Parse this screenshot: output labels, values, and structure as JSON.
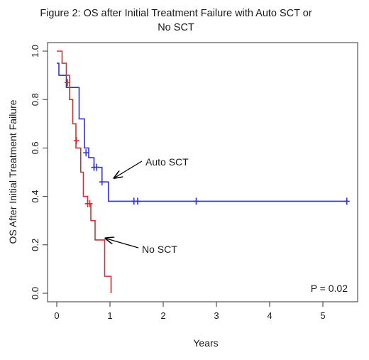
{
  "chart_data": {
    "type": "line",
    "step": true,
    "title_lines": [
      "Figure 2: OS after Initial Treatment Failure with Auto SCT or",
      "No SCT"
    ],
    "xlabel": "Years",
    "ylabel": "OS After Initial Treatment Failure",
    "xlim": [
      0,
      5.6
    ],
    "ylim": [
      0,
      1.0
    ],
    "x_ticks": [
      "0",
      "1",
      "2",
      "3",
      "4",
      "5"
    ],
    "y_ticks": [
      "0.0",
      "0.2",
      "0.4",
      "0.6",
      "0.8",
      "1.0"
    ],
    "grid": false,
    "series": [
      {
        "name": "Auto SCT",
        "color": "#3333cc",
        "x": [
          0,
          0.04,
          0.18,
          0.35,
          0.42,
          0.52,
          0.6,
          0.7,
          0.85,
          0.97,
          5.45
        ],
        "y": [
          0.95,
          0.9,
          0.85,
          0.85,
          0.72,
          0.6,
          0.56,
          0.52,
          0.46,
          0.38,
          0.38
        ],
        "censored_x": [
          0.55,
          0.7,
          0.75,
          0.85,
          1.45,
          1.52,
          2.62,
          5.45
        ],
        "censored_y": [
          0.58,
          0.52,
          0.52,
          0.46,
          0.38,
          0.38,
          0.38,
          0.38
        ]
      },
      {
        "name": "No SCT",
        "color": "#cc3333",
        "x": [
          0,
          0.1,
          0.18,
          0.24,
          0.3,
          0.36,
          0.45,
          0.5,
          0.58,
          0.64,
          0.72,
          0.9,
          1.02
        ],
        "y": [
          1.0,
          0.95,
          0.9,
          0.8,
          0.7,
          0.6,
          0.5,
          0.4,
          0.37,
          0.3,
          0.22,
          0.07,
          0.0
        ],
        "censored_x": [
          0.2,
          0.37,
          0.58,
          0.62
        ],
        "censored_y": [
          0.87,
          0.63,
          0.37,
          0.37
        ]
      }
    ],
    "annotations": [
      {
        "text": "Auto SCT",
        "target": [
          0.95,
          0.49
        ]
      },
      {
        "text": "No SCT",
        "target": [
          0.92,
          0.23
        ]
      }
    ],
    "pvalue_label": "P = 0.02"
  }
}
